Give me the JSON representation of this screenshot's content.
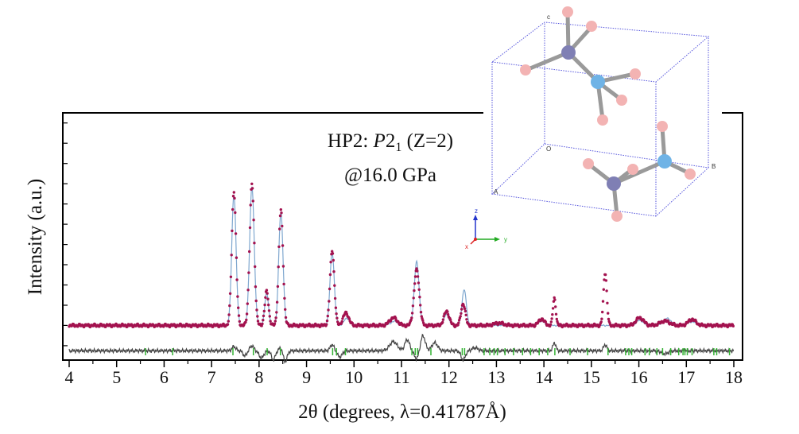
{
  "chart_data": {
    "type": "line",
    "title_line1_prefix": "HP2: ",
    "title_line1_symbol": "P",
    "title_line1_number": "2",
    "title_line1_subscript": "1",
    "title_line1_suffix": " (Z=2)",
    "title_line2": "@16.0 GPa",
    "xlabel": "2θ (degrees, λ=0.41787Å)",
    "ylabel": "Intensity (a.u.)",
    "xlim": [
      4,
      18
    ],
    "ylim": [
      -1.2,
      10.5
    ],
    "x_ticks": [
      4,
      5,
      6,
      7,
      8,
      9,
      10,
      11,
      12,
      13,
      14,
      15,
      16,
      17,
      18
    ],
    "x_tick_labels": [
      "4",
      "5",
      "6",
      "7",
      "8",
      "9",
      "10",
      "11",
      "12",
      "13",
      "14",
      "15",
      "16",
      "17",
      "18"
    ],
    "series": [
      {
        "name": "observed",
        "style": "points",
        "color": "#a3124f",
        "baseline": 0.0,
        "peaks": [
          [
            7.47,
            6.65,
            0.045
          ],
          [
            7.85,
            6.98,
            0.048
          ],
          [
            8.16,
            1.68,
            0.04
          ],
          [
            8.46,
            5.7,
            0.045
          ],
          [
            9.54,
            3.71,
            0.045
          ],
          [
            9.83,
            0.62,
            0.06
          ],
          [
            10.83,
            0.38,
            0.08
          ],
          [
            11.32,
            2.73,
            0.055
          ],
          [
            11.95,
            0.7,
            0.055
          ],
          [
            12.3,
            1.07,
            0.045
          ],
          [
            13.05,
            0.12,
            0.1
          ],
          [
            13.95,
            0.32,
            0.06
          ],
          [
            14.22,
            1.35,
            0.03
          ],
          [
            15.29,
            2.62,
            0.035
          ],
          [
            16.02,
            0.38,
            0.08
          ],
          [
            16.55,
            0.22,
            0.1
          ],
          [
            17.12,
            0.3,
            0.08
          ]
        ]
      },
      {
        "name": "calculated",
        "style": "line",
        "color": "#7fa7cf",
        "baseline": 0.0,
        "peaks": [
          [
            7.47,
            6.5,
            0.045
          ],
          [
            7.85,
            6.85,
            0.048
          ],
          [
            8.16,
            1.6,
            0.04
          ],
          [
            8.46,
            5.6,
            0.045
          ],
          [
            9.54,
            3.6,
            0.045
          ],
          [
            9.85,
            0.35,
            0.06
          ],
          [
            10.85,
            0.2,
            0.08
          ],
          [
            11.32,
            3.15,
            0.05
          ],
          [
            11.95,
            0.55,
            0.05
          ],
          [
            12.32,
            1.78,
            0.045
          ],
          [
            13.95,
            0.22,
            0.06
          ],
          [
            16.02,
            0.25,
            0.07
          ],
          [
            16.6,
            0.35,
            0.08
          ],
          [
            17.12,
            0.18,
            0.08
          ]
        ]
      },
      {
        "name": "difference",
        "style": "line",
        "color": "#444444",
        "baseline": -1.25,
        "peaks": [
          [
            7.47,
            0.2,
            0.04
          ],
          [
            7.7,
            -0.25,
            0.04
          ],
          [
            7.85,
            0.25,
            0.04
          ],
          [
            8.05,
            -0.35,
            0.05
          ],
          [
            8.3,
            -0.45,
            0.04
          ],
          [
            8.46,
            0.15,
            0.04
          ],
          [
            8.55,
            -0.55,
            0.04
          ],
          [
            9.54,
            0.3,
            0.04
          ],
          [
            9.7,
            -0.3,
            0.05
          ],
          [
            10.83,
            0.45,
            0.08
          ],
          [
            11.12,
            0.55,
            0.05
          ],
          [
            11.32,
            -0.4,
            0.05
          ],
          [
            11.45,
            0.75,
            0.05
          ],
          [
            11.7,
            0.4,
            0.06
          ],
          [
            12.3,
            -0.45,
            0.045
          ],
          [
            12.55,
            0.15,
            0.06
          ],
          [
            14.22,
            0.4,
            0.03
          ],
          [
            15.29,
            0.3,
            0.035
          ],
          [
            16.55,
            -0.15,
            0.07
          ]
        ]
      }
    ],
    "reflection_ticks_color": "#33b233",
    "reflection_ticks": [
      5.61,
      6.18,
      7.45,
      7.88,
      8.17,
      8.45,
      9.55,
      9.63,
      9.82,
      11.22,
      11.29,
      11.34,
      11.62,
      12.28,
      12.33,
      12.74,
      12.86,
      12.95,
      13.02,
      13.18,
      13.36,
      13.55,
      13.72,
      13.9,
      14.08,
      14.23,
      14.55,
      14.92,
      15.35,
      15.72,
      15.79,
      15.85,
      16.13,
      16.22,
      16.38,
      16.5,
      16.67,
      16.84,
      16.93,
      16.97,
      17.02,
      17.12,
      17.58,
      17.64,
      17.91
    ]
  },
  "inset": {
    "axes_labels": {
      "x": "x",
      "y": "y",
      "z": "z"
    },
    "cell_labels": {
      "c": "c",
      "o": "O",
      "a": "A",
      "b": "B"
    },
    "colors": {
      "cell": "#5555dd",
      "bond": "#9a9a9a",
      "n_atom": "#7f7fb4",
      "b_atom": "#6fb3e6",
      "h_atom": "#f3b3b3"
    }
  }
}
